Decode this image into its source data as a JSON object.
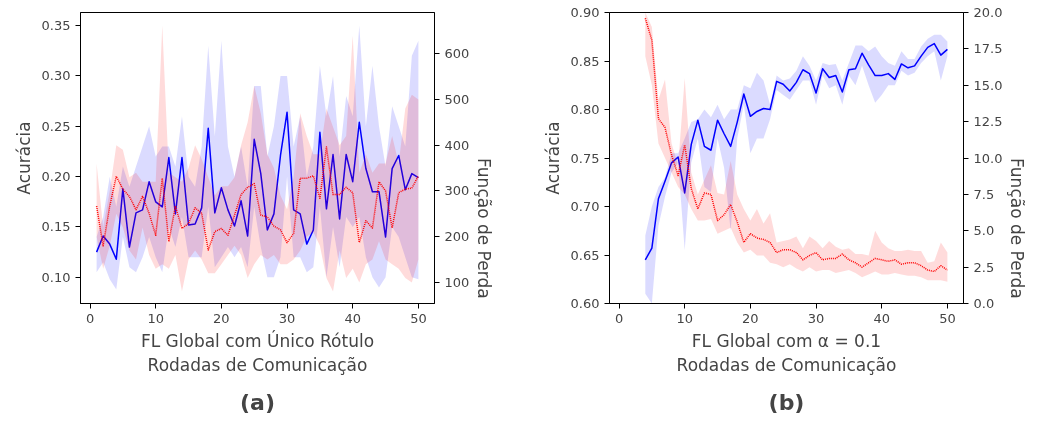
{
  "chart_data": [
    {
      "type": "line",
      "xlabel": "FL Global com Único Rótulo\nRodadas de Comunicação",
      "ylabel": "Acurácia",
      "y2label": "Função de Perda",
      "annotations": [
        "(a)"
      ],
      "x": [
        1,
        2,
        3,
        4,
        5,
        6,
        7,
        8,
        9,
        10,
        11,
        12,
        13,
        14,
        15,
        16,
        17,
        18,
        19,
        20,
        21,
        22,
        23,
        24,
        25,
        26,
        27,
        28,
        29,
        30,
        31,
        32,
        33,
        34,
        35,
        36,
        37,
        38,
        39,
        40,
        41,
        42,
        43,
        44,
        45,
        46,
        47,
        48,
        49,
        50
      ],
      "xlim": [
        -1.45,
        52.45
      ],
      "xticks": [
        0,
        10,
        20,
        30,
        40,
        50
      ],
      "ylim": [
        0.074,
        0.363
      ],
      "yticks": [
        {
          "value": 0.1,
          "label": "0.10"
        },
        {
          "value": 0.15,
          "label": "0.15"
        },
        {
          "value": 0.2,
          "label": "0.20"
        },
        {
          "value": 0.25,
          "label": "0.25"
        },
        {
          "value": 0.3,
          "label": "0.30"
        },
        {
          "value": 0.35,
          "label": "0.35"
        }
      ],
      "y2lim": [
        54,
        690
      ],
      "y2ticks": [
        100,
        200,
        300,
        400,
        500,
        600
      ],
      "grid": false,
      "series": [
        {
          "color": "#0000ff",
          "line_style": "solid",
          "values": [
            0.125,
            0.141,
            0.133,
            0.118,
            0.188,
            0.13,
            0.164,
            0.167,
            0.195,
            0.175,
            0.17,
            0.219,
            0.163,
            0.219,
            0.152,
            0.153,
            0.169,
            0.248,
            0.164,
            0.189,
            0.167,
            0.151,
            0.176,
            0.141,
            0.237,
            0.203,
            0.147,
            0.163,
            0.221,
            0.264,
            0.167,
            0.163,
            0.133,
            0.147,
            0.244,
            0.168,
            0.222,
            0.158,
            0.222,
            0.195,
            0.254,
            0.208,
            0.185,
            0.185,
            0.14,
            0.208,
            0.221,
            0.187,
            0.203,
            0.199
          ],
          "upper": [
            0.14,
            0.16,
            0.2,
            0.17,
            0.21,
            0.19,
            0.21,
            0.23,
            0.25,
            0.22,
            0.23,
            0.23,
            0.21,
            0.26,
            0.2,
            0.19,
            0.23,
            0.33,
            0.24,
            0.335,
            0.23,
            0.2,
            0.23,
            0.19,
            0.29,
            0.29,
            0.22,
            0.25,
            0.3,
            0.3,
            0.23,
            0.26,
            0.2,
            0.23,
            0.31,
            0.26,
            0.3,
            0.22,
            0.28,
            0.26,
            0.35,
            0.25,
            0.31,
            0.25,
            0.21,
            0.27,
            0.25,
            0.23,
            0.32,
            0.335
          ],
          "lower": [
            0.105,
            0.115,
            0.098,
            0.088,
            0.14,
            0.11,
            0.105,
            0.12,
            0.14,
            0.12,
            0.105,
            0.15,
            0.13,
            0.16,
            0.12,
            0.12,
            0.12,
            0.17,
            0.11,
            0.12,
            0.13,
            0.12,
            0.13,
            0.11,
            0.17,
            0.13,
            0.1,
            0.1,
            0.12,
            0.2,
            0.12,
            0.12,
            0.105,
            0.11,
            0.17,
            0.1,
            0.15,
            0.11,
            0.16,
            0.15,
            0.16,
            0.12,
            0.1,
            0.09,
            0.1,
            0.15,
            0.14,
            0.12,
            0.1,
            0.098
          ]
        },
        {
          "color": "#ff0000",
          "line_style": "dotted",
          "axis": "y2",
          "values": [
            267,
            180,
            267,
            332,
            304,
            288,
            259,
            288,
            251,
            203,
            328,
            189,
            267,
            218,
            229,
            263,
            251,
            171,
            211,
            218,
            203,
            247,
            292,
            308,
            316,
            247,
            243,
            223,
            215,
            187,
            207,
            328,
            328,
            333,
            284,
            396,
            292,
            292,
            308,
            296,
            187,
            235,
            219,
            320,
            300,
            219,
            296,
            304,
            306,
            333
          ],
          "upper": [
            360,
            220,
            300,
            400,
            390,
            330,
            340,
            320,
            320,
            320,
            662,
            340,
            330,
            320,
            350,
            400,
            370,
            330,
            290,
            310,
            310,
            330,
            400,
            450,
            530,
            470,
            380,
            350,
            290,
            260,
            330,
            470,
            420,
            380,
            380,
            480,
            440,
            400,
            420,
            640,
            340,
            380,
            340,
            360,
            360,
            420,
            360,
            480,
            510,
            500
          ],
          "lower": [
            200,
            130,
            180,
            250,
            220,
            170,
            150,
            220,
            160,
            130,
            140,
            130,
            160,
            80,
            150,
            170,
            150,
            120,
            120,
            140,
            160,
            180,
            160,
            110,
            140,
            160,
            150,
            160,
            140,
            140,
            150,
            170,
            200,
            210,
            180,
            110,
            80,
            170,
            110,
            130,
            100,
            140,
            150,
            190,
            150,
            140,
            130,
            110,
            100,
            150
          ]
        }
      ]
    },
    {
      "type": "line",
      "xlabel": "FL Global com α = 0.1\nRodadas de Comunicação",
      "ylabel": "Acurácia",
      "y2label": "Função de Perda",
      "annotations": [
        "(b)"
      ],
      "x": [
        4,
        5,
        6,
        7,
        8,
        9,
        10,
        11,
        12,
        13,
        14,
        15,
        16,
        17,
        18,
        19,
        20,
        21,
        22,
        23,
        24,
        25,
        26,
        27,
        28,
        29,
        30,
        31,
        32,
        33,
        34,
        35,
        36,
        37,
        38,
        39,
        40,
        41,
        42,
        43,
        44,
        45,
        46,
        47,
        48,
        49,
        50
      ],
      "xlim": [
        -1.45,
        52.45
      ],
      "xticks": [
        0,
        10,
        20,
        30,
        40,
        50
      ],
      "ylim": [
        0.6,
        0.9
      ],
      "yticks": [
        {
          "value": 0.6,
          "label": "0.60"
        },
        {
          "value": 0.65,
          "label": "0.65"
        },
        {
          "value": 0.7,
          "label": "0.70"
        },
        {
          "value": 0.75,
          "label": "0.75"
        },
        {
          "value": 0.8,
          "label": "0.80"
        },
        {
          "value": 0.85,
          "label": "0.85"
        },
        {
          "value": 0.9,
          "label": "0.90"
        }
      ],
      "y2lim": [
        0,
        20
      ],
      "y2ticks": [
        {
          "value": 0,
          "label": "0.0"
        },
        {
          "value": 2.5,
          "label": "2.5"
        },
        {
          "value": 5,
          "label": "5.0"
        },
        {
          "value": 7.5,
          "label": "7.5"
        },
        {
          "value": 10,
          "label": "10.0"
        },
        {
          "value": 12.5,
          "label": "12.5"
        },
        {
          "value": 15,
          "label": "15.0"
        },
        {
          "value": 17.5,
          "label": "17.5"
        },
        {
          "value": 20,
          "label": "20.0"
        }
      ],
      "grid": false,
      "series": [
        {
          "color": "#0000ff",
          "line_style": "solid",
          "values": [
            0.645,
            0.657,
            0.708,
            0.726,
            0.745,
            0.751,
            0.714,
            0.764,
            0.789,
            0.762,
            0.758,
            0.789,
            0.775,
            0.762,
            0.787,
            0.816,
            0.793,
            0.798,
            0.801,
            0.8,
            0.829,
            0.826,
            0.819,
            0.828,
            0.841,
            0.837,
            0.817,
            0.842,
            0.833,
            0.835,
            0.818,
            0.841,
            0.842,
            0.858,
            0.846,
            0.835,
            0.835,
            0.837,
            0.831,
            0.847,
            0.843,
            0.845,
            0.855,
            0.864,
            0.868,
            0.856,
            0.862
          ],
          "upper": [
            0.67,
            0.7,
            0.72,
            0.73,
            0.755,
            0.755,
            0.77,
            0.787,
            0.79,
            0.8,
            0.792,
            0.805,
            0.79,
            0.8,
            0.8,
            0.825,
            0.822,
            0.838,
            0.83,
            0.805,
            0.835,
            0.83,
            0.832,
            0.84,
            0.855,
            0.845,
            0.83,
            0.848,
            0.846,
            0.847,
            0.83,
            0.848,
            0.866,
            0.866,
            0.86,
            0.865,
            0.855,
            0.848,
            0.845,
            0.86,
            0.852,
            0.852,
            0.865,
            0.873,
            0.877,
            0.877,
            0.87
          ],
          "lower": [
            0.61,
            0.6,
            0.68,
            0.71,
            0.735,
            0.745,
            0.655,
            0.745,
            0.77,
            0.72,
            0.715,
            0.77,
            0.74,
            0.675,
            0.77,
            0.805,
            0.755,
            0.77,
            0.77,
            0.79,
            0.82,
            0.815,
            0.81,
            0.82,
            0.83,
            0.83,
            0.805,
            0.835,
            0.822,
            0.825,
            0.805,
            0.835,
            0.825,
            0.845,
            0.825,
            0.807,
            0.815,
            0.825,
            0.825,
            0.84,
            0.835,
            0.838,
            0.848,
            0.855,
            0.86,
            0.83,
            0.855
          ]
        },
        {
          "color": "#ff0000",
          "line_style": "dotted",
          "axis": "y2",
          "values": [
            19.6,
            18.1,
            12.7,
            12.1,
            10.2,
            8.8,
            10.9,
            7.9,
            6.5,
            7.6,
            7.5,
            5.7,
            6.1,
            6.8,
            5.6,
            4.2,
            4.8,
            4.5,
            4.4,
            4.2,
            3.5,
            3.7,
            3.7,
            3.5,
            3.0,
            3.3,
            3.5,
            3.0,
            3.1,
            3.1,
            3.4,
            3.0,
            2.8,
            2.5,
            2.8,
            3.1,
            3.0,
            2.9,
            3.0,
            2.7,
            2.8,
            2.8,
            2.6,
            2.3,
            2.2,
            2.6,
            2.3
          ],
          "upper": [
            20,
            19,
            14,
            15.4,
            11,
            9.5,
            15.5,
            9,
            7.5,
            8.5,
            9.5,
            7.6,
            7.5,
            9.8,
            7.5,
            6.5,
            5.7,
            6.5,
            5.5,
            6.2,
            4.2,
            4.3,
            4.4,
            4.6,
            3.8,
            4.6,
            4.3,
            3.8,
            4.3,
            3.9,
            3.7,
            3.8,
            3.4,
            3.4,
            3.3,
            5.0,
            4.2,
            3.8,
            3.6,
            3.6,
            3.7,
            3.6,
            3.6,
            2.8,
            2.9,
            4.2,
            3.5
          ],
          "lower": [
            17,
            15,
            11,
            10,
            9,
            8,
            7.5,
            6.5,
            5.7,
            5.7,
            5.8,
            4.8,
            5,
            5.2,
            4.2,
            3.5,
            3.7,
            3.3,
            3.3,
            2.8,
            2.7,
            2.5,
            2.7,
            2.4,
            2.2,
            2.5,
            2.2,
            2.3,
            2.3,
            2.1,
            2.2,
            2.3,
            2.1,
            1.8,
            2.0,
            2.2,
            2.0,
            2.0,
            2.1,
            2.0,
            1.9,
            1.9,
            1.8,
            1.6,
            1.6,
            1.6,
            1.5
          ]
        }
      ]
    }
  ]
}
